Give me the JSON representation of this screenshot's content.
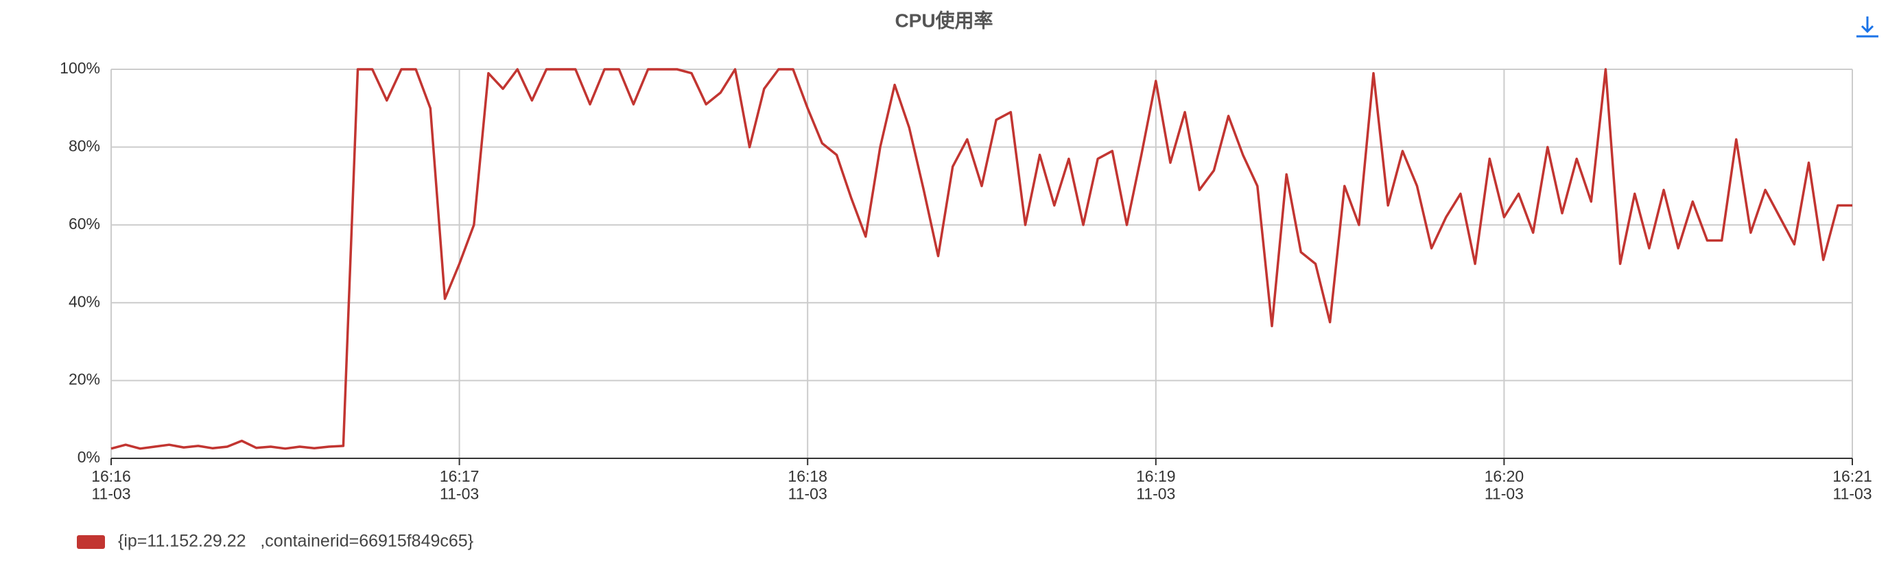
{
  "chart_data": {
    "type": "line",
    "title": "CPU使用率",
    "categories": [
      "16:16\n11-03",
      null,
      null,
      null,
      null,
      null,
      null,
      null,
      null,
      null,
      null,
      null,
      null,
      null,
      null,
      null,
      null,
      null,
      null,
      null,
      null,
      null,
      null,
      null,
      "16:17\n11-03",
      null,
      null,
      null,
      null,
      null,
      null,
      null,
      null,
      null,
      null,
      null,
      null,
      null,
      null,
      null,
      null,
      null,
      null,
      null,
      null,
      null,
      null,
      null,
      "16:18\n11-03",
      null,
      null,
      null,
      null,
      null,
      null,
      null,
      null,
      null,
      null,
      null,
      null,
      null,
      null,
      null,
      null,
      null,
      null,
      null,
      null,
      null,
      null,
      null,
      "16:19\n11-03",
      null,
      null,
      null,
      null,
      null,
      null,
      null,
      null,
      null,
      null,
      null,
      null,
      null,
      null,
      null,
      null,
      null,
      null,
      null,
      null,
      null,
      null,
      null,
      "16:20\n11-03",
      null,
      null,
      null,
      null,
      null,
      null,
      null,
      null,
      null,
      null,
      null,
      null,
      null,
      null,
      null,
      null,
      null,
      null,
      null,
      null,
      null,
      null,
      null,
      "16:21\n11-03"
    ],
    "series": [
      {
        "name": "{ip=11.152.29.22   ,containerid=66915f849c65}",
        "color": "#c23531",
        "values": [
          2.5,
          3.5,
          2.5,
          3,
          3.5,
          2.8,
          3.2,
          2.6,
          3,
          4.5,
          2.7,
          3,
          2.5,
          3,
          2.6,
          3,
          3.2,
          100,
          100,
          92,
          100,
          100,
          90,
          41,
          50,
          60,
          99,
          95,
          100,
          92,
          100,
          100,
          100,
          91,
          100,
          100,
          91,
          100,
          100,
          100,
          99,
          91,
          94,
          100,
          80,
          95,
          100,
          100,
          90,
          81,
          78,
          67,
          57,
          80,
          96,
          85,
          69,
          52,
          75,
          82,
          70,
          87,
          89,
          60,
          78,
          65,
          77,
          60,
          77,
          79,
          60,
          78,
          97,
          76,
          89,
          69,
          74,
          88,
          78,
          70,
          34,
          73,
          53,
          50,
          35,
          70,
          60,
          99,
          65,
          79,
          70,
          54,
          62,
          68,
          50,
          77,
          62,
          68,
          58,
          80,
          63,
          77,
          66,
          100,
          50,
          68,
          54,
          69,
          54,
          66,
          56,
          56,
          82,
          58,
          69,
          62,
          55,
          76,
          51,
          65,
          65
        ]
      }
    ],
    "ylim": [
      0,
      100
    ],
    "yticks": [
      {
        "value": 0,
        "label": "0%"
      },
      {
        "value": 20,
        "label": "20%"
      },
      {
        "value": 40,
        "label": "40%"
      },
      {
        "value": 60,
        "label": "60%"
      },
      {
        "value": 80,
        "label": "80%"
      },
      {
        "value": 100,
        "label": "100%"
      }
    ],
    "grid": true
  }
}
